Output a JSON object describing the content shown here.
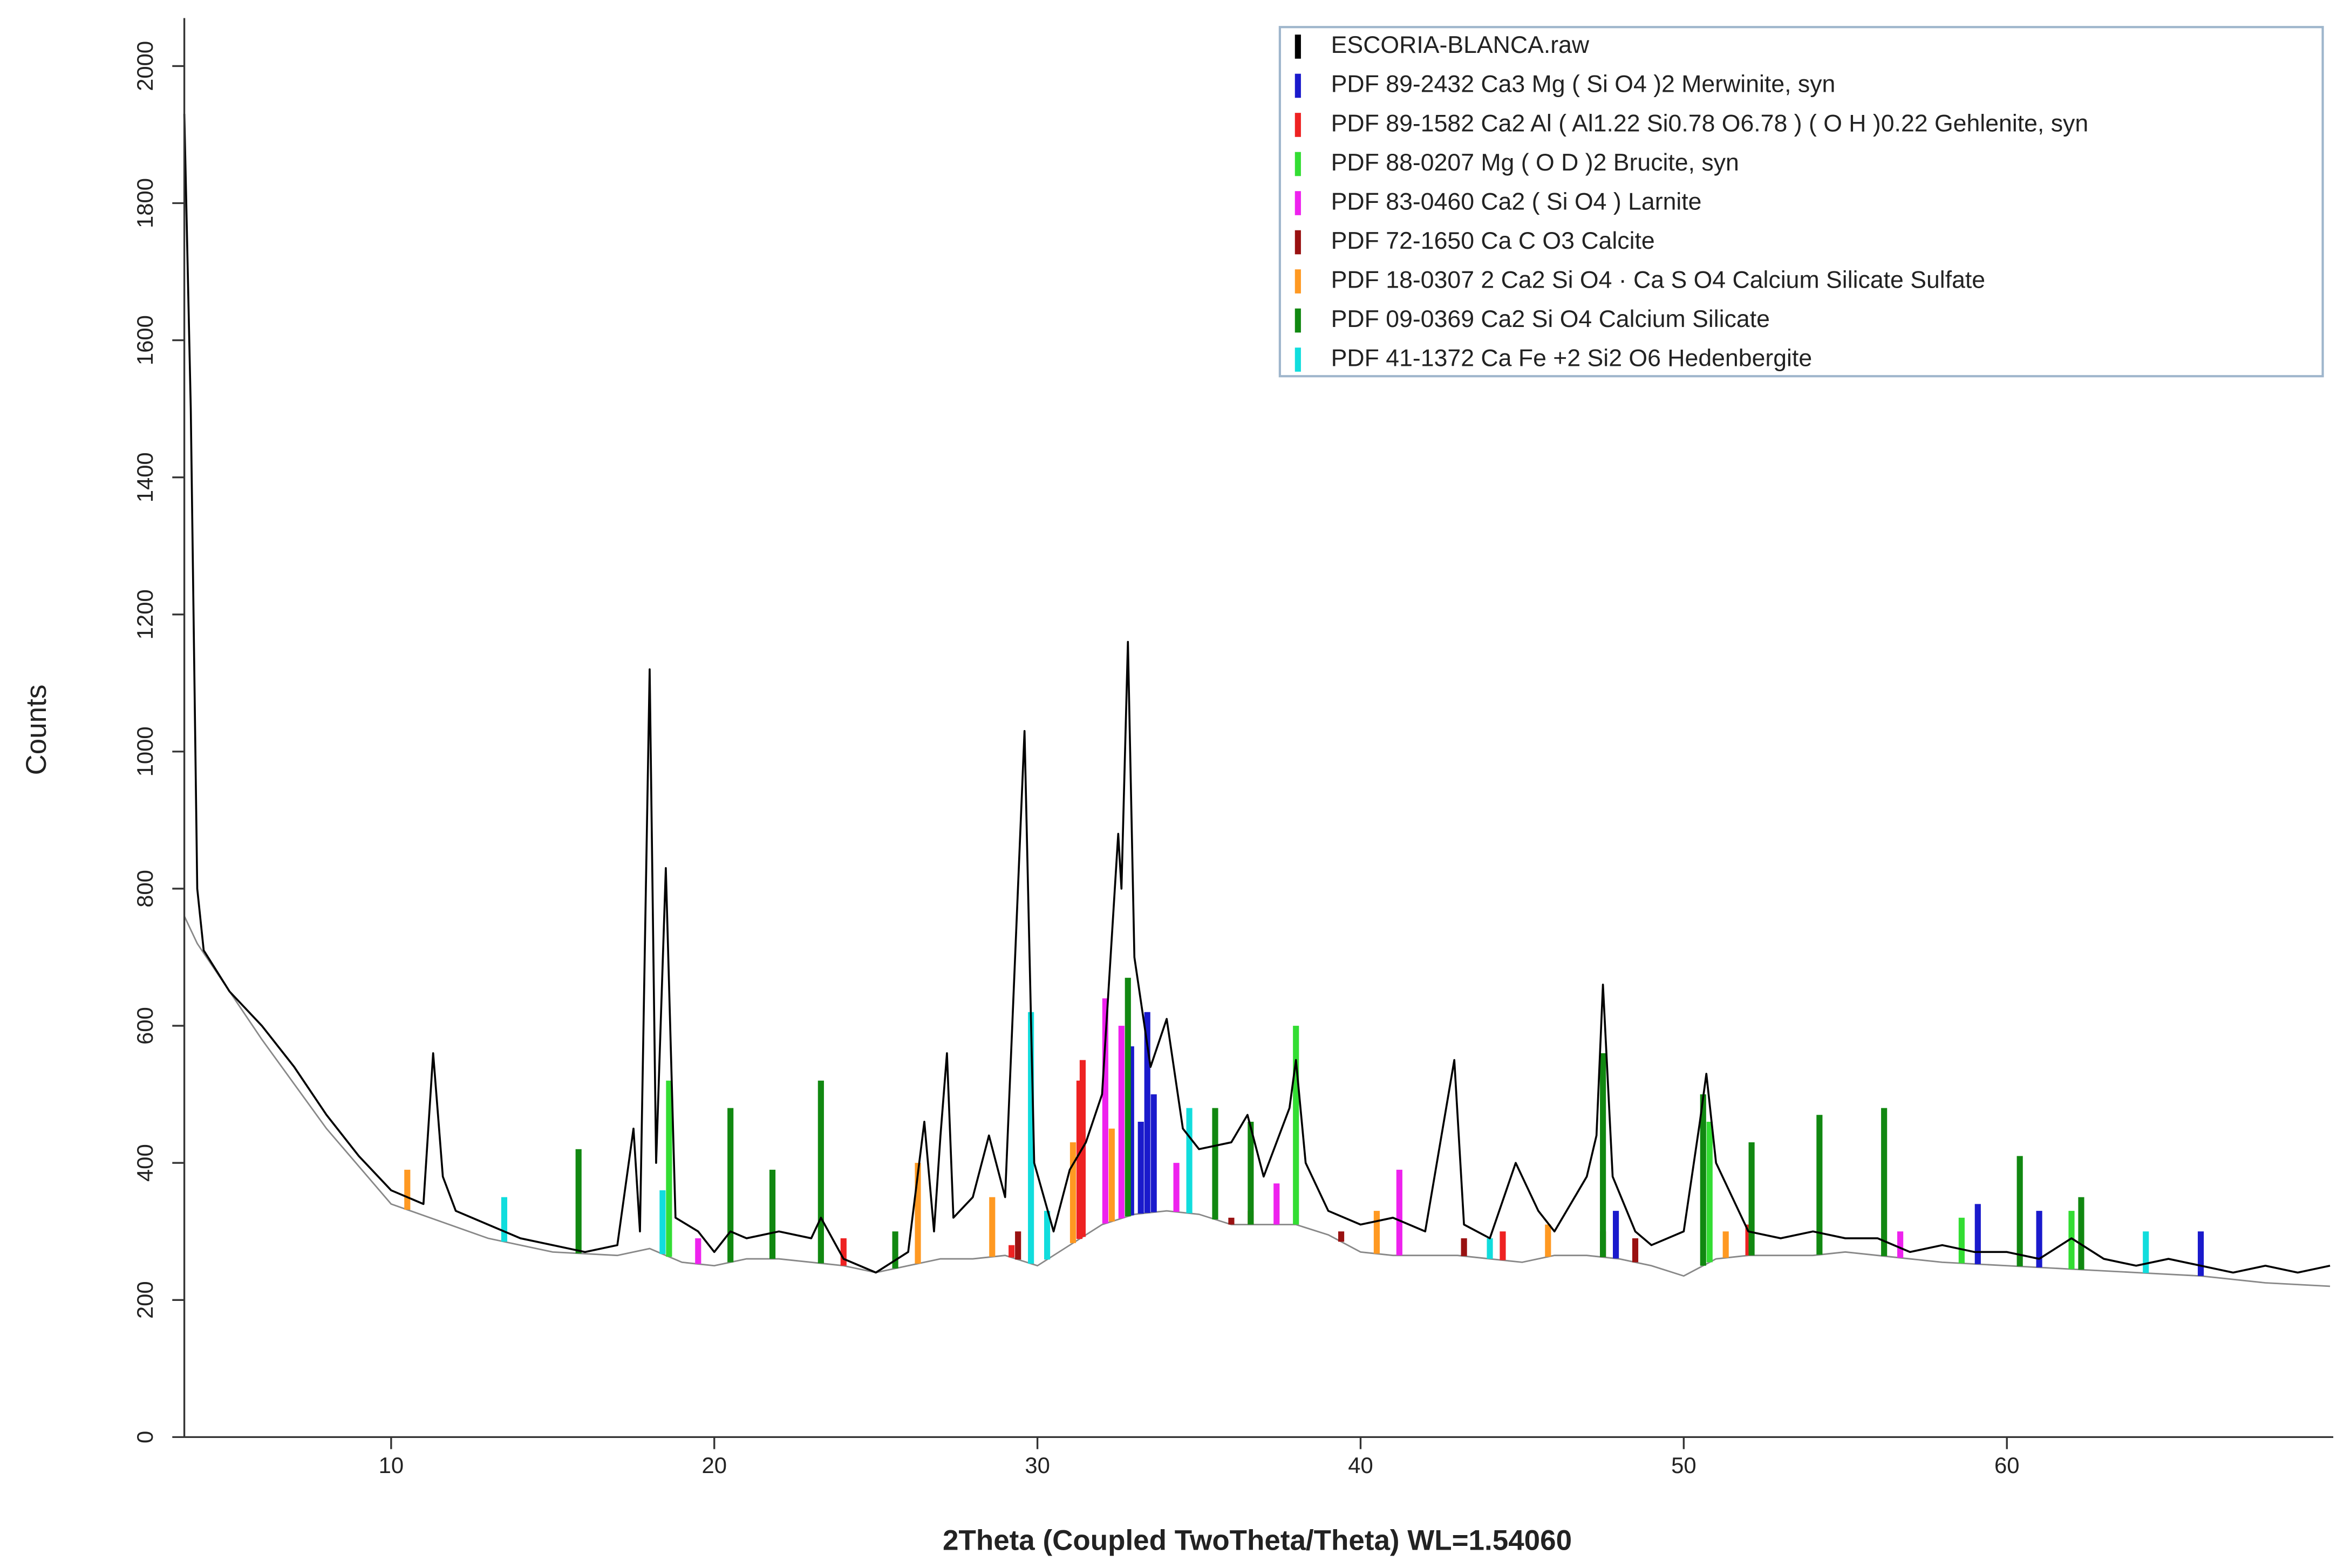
{
  "chart_data": {
    "type": "line",
    "x_label": "2Theta (Coupled TwoTheta/Theta) WL=1.54060",
    "y_label": "Counts",
    "xlim": [
      3.6,
      70.1
    ],
    "ylim": [
      0,
      2070
    ],
    "xticks": [
      10,
      20,
      30,
      40,
      50,
      60
    ],
    "yticks": [
      0,
      200,
      400,
      600,
      800,
      1000,
      1200,
      1400,
      1600,
      1800,
      2000
    ],
    "baseline": {
      "x": [
        3.6,
        4,
        6,
        8,
        10,
        13,
        15,
        17,
        18,
        19,
        20,
        21,
        22,
        24,
        25,
        26,
        27,
        28,
        29,
        30,
        31,
        32,
        33,
        34,
        35,
        36,
        37,
        38,
        39,
        40,
        41,
        42,
        43,
        44,
        45,
        46,
        47,
        48,
        49,
        50,
        51,
        52,
        53,
        54,
        55,
        56,
        57,
        58,
        60,
        62,
        64,
        66,
        68,
        70
      ],
      "values": [
        760,
        720,
        580,
        450,
        340,
        290,
        270,
        265,
        275,
        255,
        250,
        260,
        260,
        250,
        240,
        250,
        260,
        260,
        265,
        250,
        280,
        310,
        325,
        330,
        325,
        310,
        310,
        310,
        295,
        270,
        265,
        265,
        265,
        260,
        255,
        265,
        265,
        260,
        250,
        235,
        260,
        265,
        265,
        265,
        270,
        265,
        260,
        255,
        250,
        245,
        240,
        235,
        225,
        220
      ],
      "color": "#888888"
    },
    "series": [
      {
        "name": "ESCORIA-BLANCA.raw",
        "type": "line",
        "color": "#000000",
        "x": [
          3.6,
          3.8,
          4.0,
          4.2,
          5,
          6,
          7,
          8,
          9,
          10,
          11,
          11.3,
          11.6,
          12,
          13,
          14,
          15,
          16,
          17,
          17.5,
          17.7,
          18.0,
          18.2,
          18.5,
          18.8,
          19.5,
          20,
          20.5,
          21,
          22,
          23,
          23.3,
          24,
          25,
          26,
          26.5,
          26.8,
          27,
          27.2,
          27.4,
          28,
          28.5,
          29,
          29.6,
          29.9,
          30.5,
          31,
          31.5,
          32,
          32.5,
          32.6,
          32.8,
          33.0,
          33.5,
          34,
          34.5,
          35,
          36,
          36.5,
          37,
          37.8,
          38,
          38.3,
          39,
          40,
          41,
          42,
          42.9,
          43.2,
          44,
          44.8,
          45.5,
          46,
          47,
          47.3,
          47.5,
          47.8,
          48.5,
          49,
          50,
          50.5,
          50.7,
          51,
          52,
          53,
          54,
          55,
          56,
          57,
          58,
          59,
          60,
          61,
          62,
          63,
          64,
          65,
          66,
          67,
          68,
          69,
          70
        ],
        "values": [
          1930,
          1500,
          800,
          710,
          650,
          600,
          540,
          470,
          410,
          360,
          340,
          560,
          380,
          330,
          310,
          290,
          280,
          270,
          280,
          450,
          300,
          1120,
          400,
          830,
          320,
          300,
          270,
          300,
          290,
          300,
          290,
          320,
          260,
          240,
          270,
          460,
          300,
          440,
          560,
          320,
          350,
          440,
          350,
          1030,
          400,
          300,
          390,
          430,
          500,
          880,
          800,
          1160,
          700,
          540,
          610,
          450,
          420,
          430,
          470,
          380,
          480,
          550,
          400,
          330,
          310,
          320,
          300,
          550,
          310,
          290,
          400,
          330,
          300,
          380,
          440,
          660,
          380,
          300,
          280,
          300,
          460,
          530,
          400,
          300,
          290,
          300,
          290,
          290,
          270,
          280,
          270,
          270,
          260,
          290,
          260,
          250,
          260,
          250,
          240,
          250,
          240,
          250
        ]
      },
      {
        "name": "PDF 89-2432 Ca3 Mg ( Si O4 )2 Merwinite, syn",
        "type": "bar",
        "color": "#1a1acc",
        "x": [
          32.9,
          33.2,
          33.4,
          33.6,
          47.9,
          59.1,
          61.0,
          66.0
        ],
        "values": [
          570,
          460,
          620,
          500,
          330,
          340,
          330,
          300
        ]
      },
      {
        "name": "PDF 89-1582 Ca2 Al ( Al1.22 Si0.78 O6.78 ) ( O H )0.22 Gehlenite, syn",
        "type": "bar",
        "color": "#ee2222",
        "x": [
          24.0,
          29.2,
          31.3,
          31.4,
          36.6,
          44.4,
          52.0
        ],
        "values": [
          290,
          280,
          520,
          550,
          330,
          300,
          310
        ]
      },
      {
        "name": "PDF 88-0207 Mg ( O D )2 Brucite, syn",
        "type": "bar",
        "color": "#33dd33",
        "x": [
          18.6,
          38.0,
          50.8,
          58.6,
          62.0
        ],
        "values": [
          520,
          600,
          460,
          320,
          330
        ]
      },
      {
        "name": "PDF 83-0460 Ca2 ( Si O4 ) Larnite",
        "type": "bar",
        "color": "#ee22ee",
        "x": [
          19.5,
          32.1,
          32.6,
          34.3,
          37.4,
          41.2,
          56.7
        ],
        "values": [
          290,
          640,
          600,
          400,
          370,
          390,
          300
        ]
      },
      {
        "name": "PDF 72-1650 Ca C O3 Calcite",
        "type": "bar",
        "color": "#991111",
        "x": [
          29.4,
          36.0,
          39.4,
          43.2,
          47.5,
          48.5
        ],
        "values": [
          300,
          320,
          300,
          290,
          300,
          290
        ]
      },
      {
        "name": "PDF 18-0307 2 Ca2 Si O4 · Ca S O4 Calcium Silicate Sulfate",
        "type": "bar",
        "color": "#ff9922",
        "x": [
          10.5,
          26.3,
          28.6,
          31.1,
          32.3,
          40.5,
          45.8,
          51.3
        ],
        "values": [
          390,
          400,
          350,
          430,
          450,
          330,
          310,
          300
        ]
      },
      {
        "name": "PDF 09-0369 Ca2 Si O4 Calcium Silicate",
        "type": "bar",
        "color": "#118811",
        "x": [
          15.8,
          20.5,
          21.8,
          23.3,
          25.6,
          32.8,
          35.5,
          36.6,
          47.5,
          50.6,
          52.1,
          54.2,
          56.2,
          60.4,
          62.3
        ],
        "values": [
          420,
          480,
          390,
          520,
          300,
          670,
          480,
          460,
          560,
          500,
          430,
          470,
          480,
          410,
          350
        ]
      },
      {
        "name": "PDF 41-1372 Ca Fe +2 Si2 O6 Hedenbergite",
        "type": "bar",
        "color": "#11dddd",
        "x": [
          13.5,
          18.4,
          29.8,
          30.3,
          34.7,
          44.0,
          64.3
        ],
        "values": [
          350,
          360,
          620,
          330,
          480,
          290,
          300
        ]
      }
    ]
  }
}
